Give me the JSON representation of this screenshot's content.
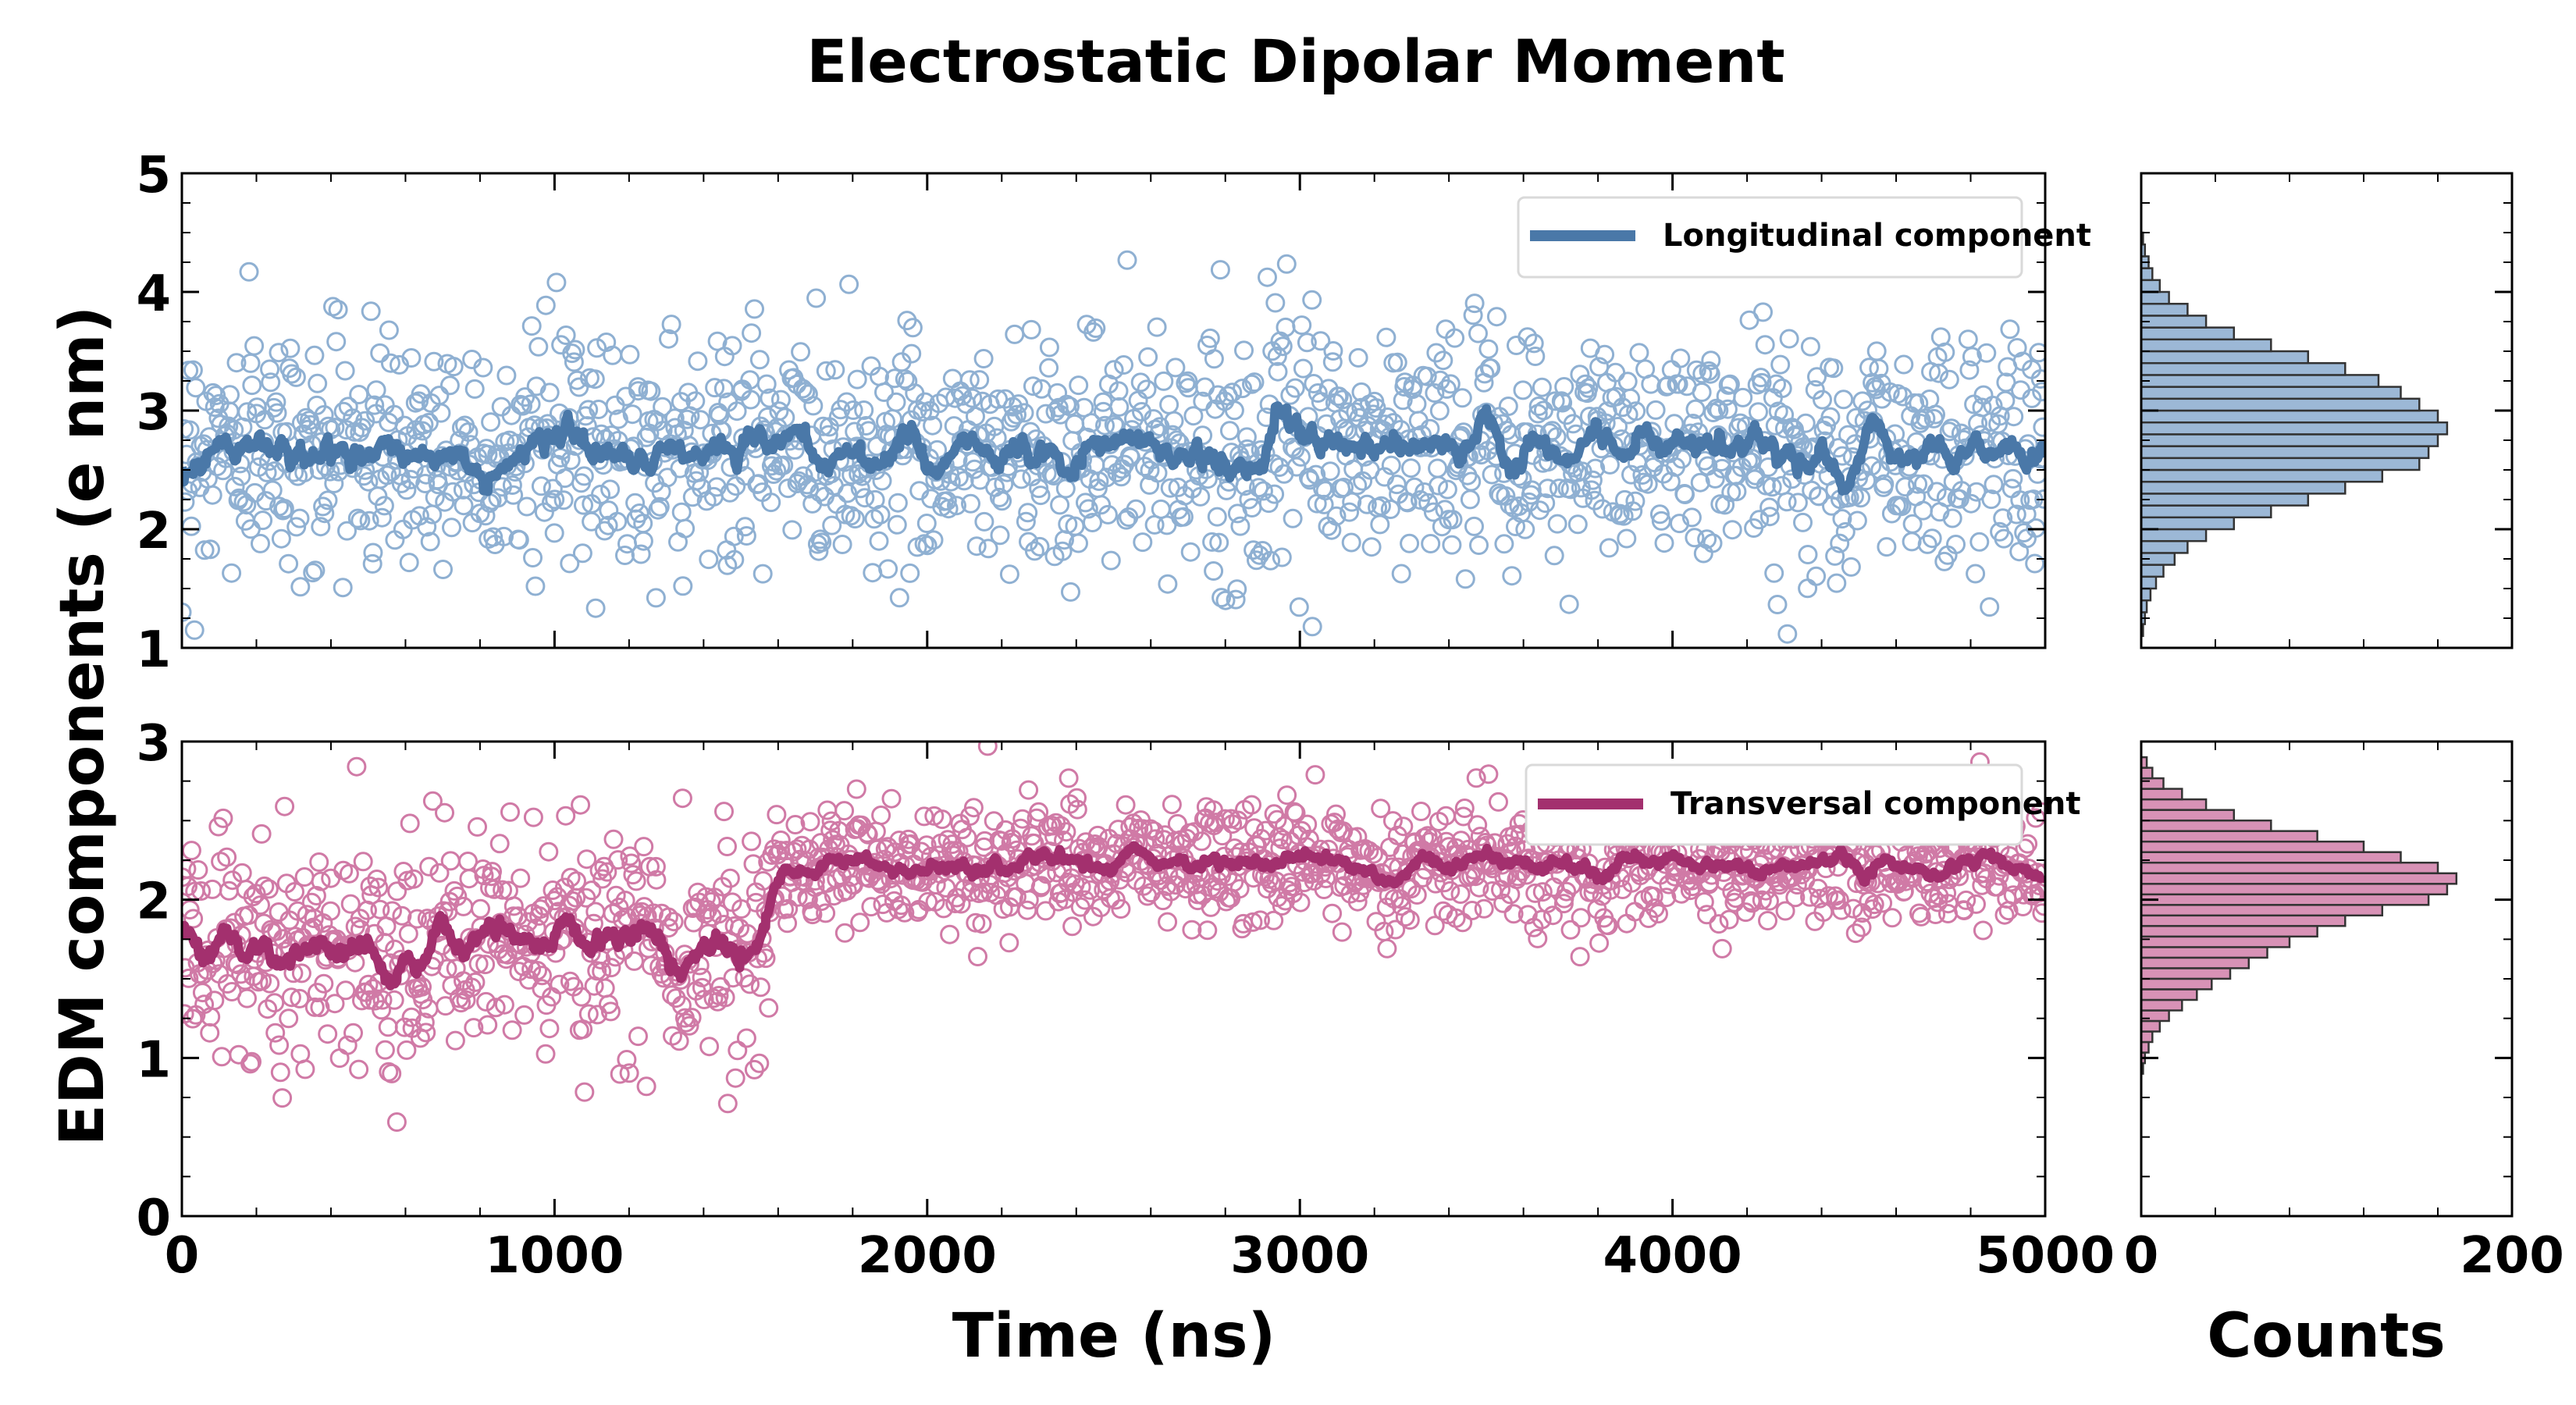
{
  "chart_data": {
    "type": "scatter",
    "title": "Electrostatic Dipolar Moment",
    "xlabel": "Time (ns)",
    "ylabel": "EDM components (e nm)",
    "hist_xlabel": "Counts",
    "xlim": [
      0,
      5000
    ],
    "x_ticks": [
      "0",
      "1000",
      "2000",
      "3000",
      "4000",
      "5000"
    ],
    "hist_xlim": [
      0,
      200
    ],
    "hist_ticks": [
      "0",
      "200"
    ],
    "panels": [
      {
        "name": "longitudinal",
        "ylim": [
          1,
          5
        ],
        "y_ticks": [
          "1",
          "2",
          "3",
          "4",
          "5"
        ],
        "legend": "Longitudinal component",
        "legend_position": "upper-right",
        "color": "#4a78a8",
        "scatter_color": "#8fb0d2",
        "hist_color": "#9cb8d6",
        "segments": [
          {
            "x_start": 0,
            "x_end": 5000,
            "mean": 2.68,
            "noise_sd": 0.5
          }
        ],
        "hist_bins_start": 1.1,
        "hist_bin_width": 0.1,
        "hist_counts": [
          1,
          2,
          3,
          5,
          8,
          12,
          18,
          25,
          35,
          50,
          70,
          90,
          110,
          130,
          150,
          155,
          160,
          165,
          160,
          150,
          140,
          128,
          110,
          90,
          70,
          50,
          35,
          25,
          15,
          10,
          6,
          4,
          2,
          1
        ]
      },
      {
        "name": "transversal",
        "ylim": [
          0,
          3
        ],
        "y_ticks": [
          "0",
          "1",
          "2",
          "3"
        ],
        "legend": "Transversal component",
        "legend_position": "upper-right",
        "color": "#a3306e",
        "scatter_color": "#d07aa6",
        "hist_color": "#d892b6",
        "segments": [
          {
            "x_start": 0,
            "x_end": 1580,
            "mean": 1.72,
            "noise_sd": 0.35
          },
          {
            "x_start": 1580,
            "x_end": 5000,
            "mean": 2.22,
            "noise_sd": 0.2
          }
        ],
        "hist_bins_start": 0.9,
        "hist_bin_width": 0.0667,
        "hist_counts": [
          1,
          2,
          4,
          6,
          10,
          15,
          22,
          30,
          38,
          48,
          58,
          68,
          80,
          95,
          110,
          130,
          155,
          165,
          170,
          160,
          140,
          120,
          95,
          70,
          50,
          35,
          22,
          12,
          6,
          3
        ]
      }
    ]
  }
}
